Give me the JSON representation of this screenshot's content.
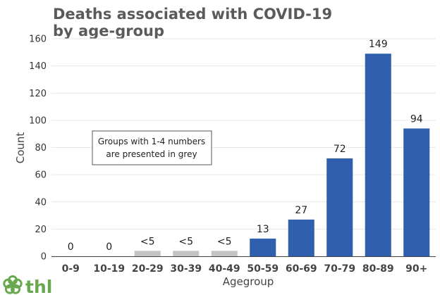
{
  "chart_data": {
    "type": "bar",
    "title_lines": [
      "Deaths associated with COVID-19",
      "by age-group"
    ],
    "xlabel": "Agegroup",
    "ylabel": "Count",
    "ylim": [
      0,
      160
    ],
    "yticks": [
      0,
      20,
      40,
      60,
      80,
      100,
      120,
      140,
      160
    ],
    "grid": true,
    "categories": [
      "0-9",
      "10-19",
      "20-29",
      "30-39",
      "40-49",
      "50-59",
      "60-69",
      "70-79",
      "80-89",
      "90+"
    ],
    "values": [
      0,
      0,
      4,
      4,
      4,
      13,
      27,
      72,
      149,
      94
    ],
    "data_labels": [
      "0",
      "0",
      "<5",
      "<5",
      "<5",
      "13",
      "27",
      "72",
      "149",
      "94"
    ],
    "suppressed": [
      false,
      false,
      true,
      true,
      true,
      false,
      false,
      false,
      false,
      false
    ],
    "colors": {
      "bar": "#2f5fad",
      "suppressed": "#c4c4c4",
      "grid": "#e6e6e6"
    },
    "annotation": [
      "Groups with 1-4 numbers",
      "are presented in grey"
    ]
  },
  "logo": {
    "text": "thl",
    "color": "#6aa84f",
    "icon": "flower-icon"
  }
}
